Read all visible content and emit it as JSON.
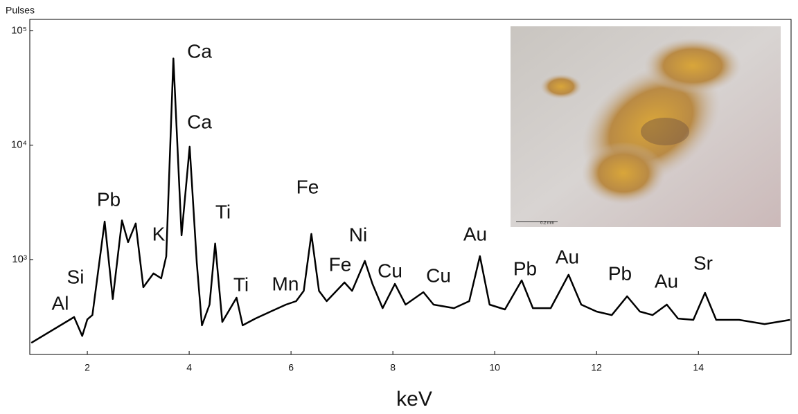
{
  "chart_data": {
    "type": "line",
    "y_label": "Pulses",
    "x_label": "keV",
    "x": [
      0.9,
      1.74,
      1.9,
      2.0,
      2.1,
      2.34,
      2.5,
      2.68,
      2.8,
      2.95,
      3.1,
      3.3,
      3.45,
      3.55,
      3.69,
      3.85,
      4.01,
      4.15,
      4.25,
      4.4,
      4.51,
      4.65,
      4.93,
      5.05,
      5.3,
      5.6,
      5.9,
      6.1,
      6.25,
      6.4,
      6.55,
      6.7,
      7.05,
      7.2,
      7.45,
      7.6,
      7.8,
      8.04,
      8.25,
      8.6,
      8.8,
      9.2,
      9.5,
      9.71,
      9.9,
      10.2,
      10.53,
      10.75,
      11.1,
      11.45,
      11.7,
      12.0,
      12.3,
      12.6,
      12.85,
      13.1,
      13.38,
      13.6,
      13.9,
      14.13,
      14.35,
      14.8,
      15.3,
      15.8
    ],
    "values": [
      187,
      314,
      215,
      300,
      327,
      2150,
      452,
      2200,
      1420,
      2070,
      573,
      757,
      686,
      1070,
      57300,
      1630,
      9700,
      933,
      266,
      404,
      1380,
      285,
      464,
      266,
      305,
      351,
      404,
      433,
      533,
      1676,
      533,
      433,
      631,
      533,
      973,
      613,
      376,
      613,
      404,
      519,
      404,
      376,
      433,
      1072,
      404,
      366,
      658,
      376,
      376,
      736,
      404,
      351,
      327,
      477,
      351,
      327,
      404,
      305,
      297,
      512,
      297,
      297,
      273,
      297
    ],
    "color": "#000000",
    "log_y": true,
    "xlim": [
      0.87,
      15.82
    ],
    "ylim": [
      148,
      126000
    ],
    "xticks": [
      2,
      4,
      6,
      8,
      10,
      12,
      14
    ],
    "yticks": [
      {
        "value": 1000,
        "label": "10³"
      },
      {
        "value": 10000,
        "label": "10⁴"
      },
      {
        "value": 100000,
        "label": "10⁵"
      }
    ],
    "annotations": [
      "Al",
      "Si",
      "Pb",
      "K",
      "Ca",
      "Ca",
      "Ti",
      "Ti",
      "Mn",
      "Fe",
      "Fe",
      "Ni",
      "Cu",
      "Cu",
      "Au",
      "Pb",
      "Au",
      "Pb",
      "Au",
      "Sr"
    ],
    "inset_scale_label": "0.2 mm"
  }
}
